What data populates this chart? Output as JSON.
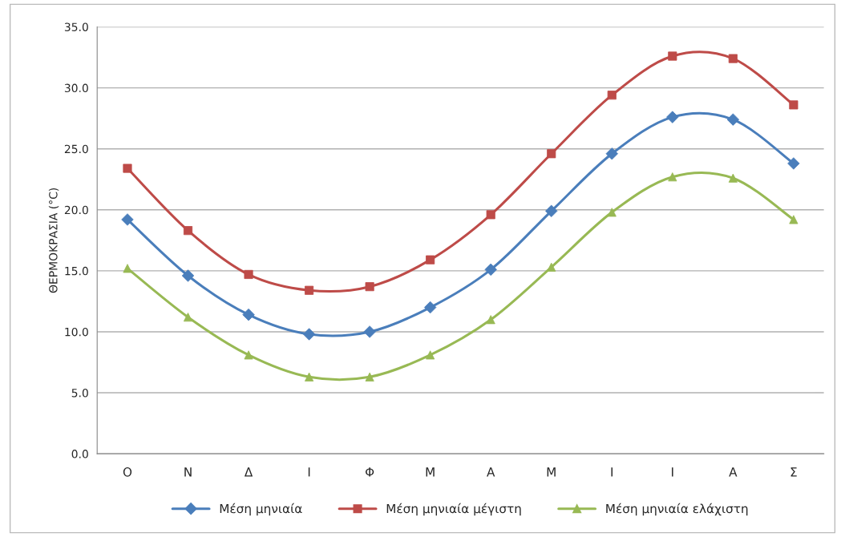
{
  "chart_data": {
    "type": "line",
    "ylabel": "ΘΕΡΜΟΚΡΑΣΙΑ (°C)",
    "categories": [
      "Ο",
      "Ν",
      "Δ",
      "Ι",
      "Φ",
      "Μ",
      "Α",
      "Μ",
      "Ι",
      "Ι",
      "Α",
      "Σ"
    ],
    "series": [
      {
        "name": "Μέση μηνιαία",
        "color": "#4a7ebb",
        "marker": "diamond",
        "values": [
          19.2,
          14.6,
          11.4,
          9.8,
          10.0,
          12.0,
          15.1,
          19.9,
          24.6,
          27.6,
          27.4,
          23.8
        ]
      },
      {
        "name": "Μέση μηνιαία μέγιστη",
        "color": "#be4b48",
        "marker": "square",
        "values": [
          23.4,
          18.3,
          14.7,
          13.4,
          13.7,
          15.9,
          19.6,
          24.6,
          29.4,
          32.6,
          32.4,
          28.6
        ]
      },
      {
        "name": "Μέση μηνιαία ελάχιστη",
        "color": "#98b954",
        "marker": "triangle",
        "values": [
          15.2,
          11.2,
          8.1,
          6.3,
          6.3,
          8.1,
          11.0,
          15.3,
          19.8,
          22.7,
          22.6,
          19.2
        ]
      }
    ],
    "ylim": [
      0,
      35
    ],
    "yticks": [
      {
        "value": 0,
        "label": "0.0"
      },
      {
        "value": 5,
        "label": "5.0"
      },
      {
        "value": 10,
        "label": "10.0"
      },
      {
        "value": 15,
        "label": "15.0"
      },
      {
        "value": 20,
        "label": "20.0"
      },
      {
        "value": 25,
        "label": "25.0"
      },
      {
        "value": 30,
        "label": "30.0"
      },
      {
        "value": 35,
        "label": "35.0"
      }
    ],
    "grid": "y",
    "legend": "bottom",
    "line_style": "solid"
  }
}
